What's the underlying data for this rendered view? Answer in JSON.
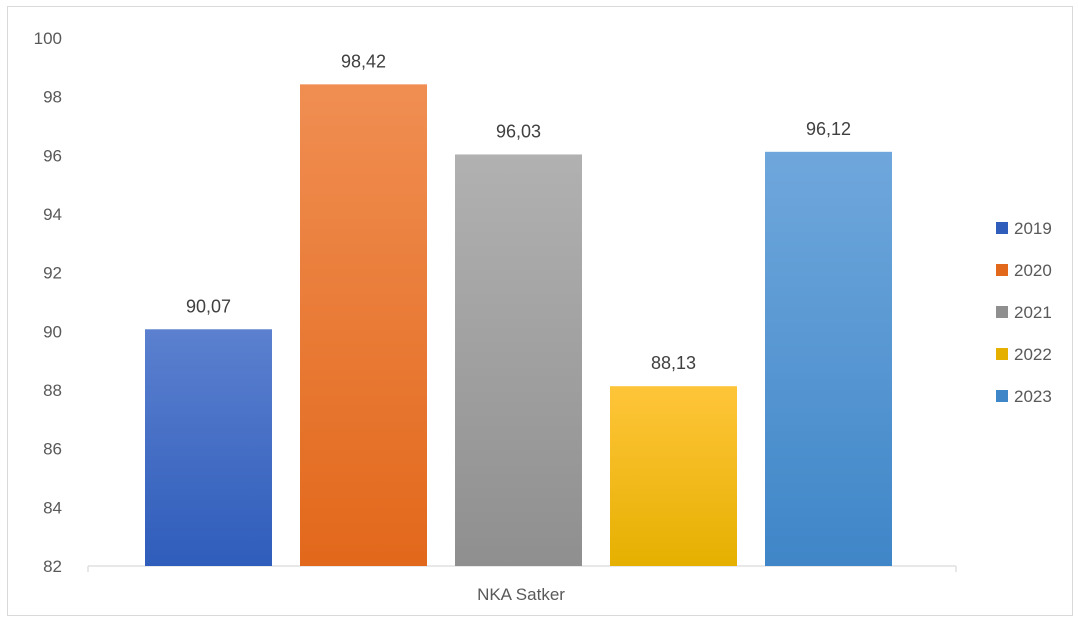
{
  "chart_data": {
    "type": "bar",
    "categories": [
      "NKA Satker"
    ],
    "series": [
      {
        "name": "2019",
        "values": [
          90.07
        ],
        "label": "90,07",
        "color_top": "#5b80cf",
        "color_bottom": "#2f5dbb"
      },
      {
        "name": "2020",
        "values": [
          98.42
        ],
        "label": "98,42",
        "color_top": "#f08e52",
        "color_bottom": "#e2681b"
      },
      {
        "name": "2021",
        "values": [
          96.03
        ],
        "label": "96,03",
        "color_top": "#b1b1b1",
        "color_bottom": "#8f8f8f"
      },
      {
        "name": "2022",
        "values": [
          88.13
        ],
        "label": "88,13",
        "color_top": "#ffc53a",
        "color_bottom": "#e6b000"
      },
      {
        "name": "2023",
        "values": [
          96.12
        ],
        "label": "96,12",
        "color_top": "#6fa7dc",
        "color_bottom": "#3f86c8"
      }
    ],
    "ylim": [
      82,
      100
    ],
    "yticks": [
      "82",
      "84",
      "86",
      "88",
      "90",
      "92",
      "94",
      "96",
      "98",
      "100"
    ],
    "ytick_values": [
      82,
      84,
      86,
      88,
      90,
      92,
      94,
      96,
      98,
      100
    ],
    "grid": false,
    "legend_position": "right"
  }
}
